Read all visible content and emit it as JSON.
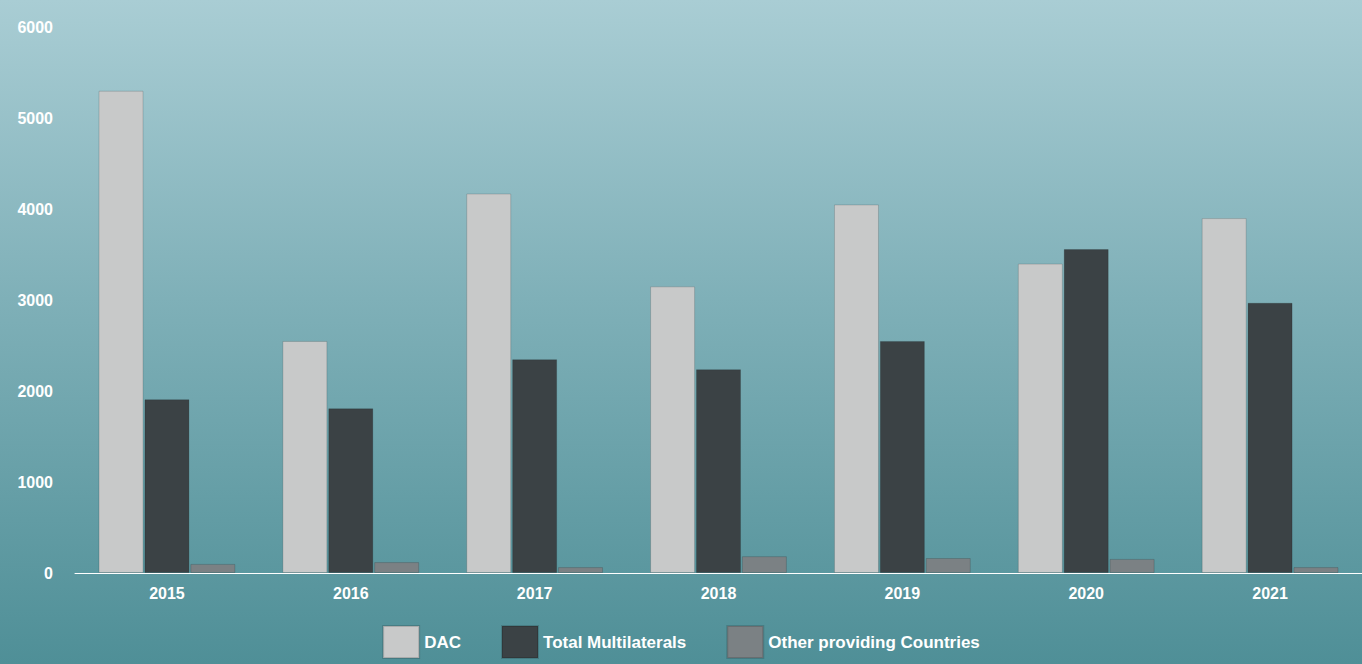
{
  "chart_data": {
    "type": "bar",
    "categories": [
      "2015",
      "2016",
      "2017",
      "2018",
      "2019",
      "2020",
      "2021"
    ],
    "series": [
      {
        "name": "DAC",
        "color": "#c8c9c9",
        "values": [
          5300,
          2550,
          4170,
          3150,
          4050,
          3400,
          3900
        ]
      },
      {
        "name": "Total Multilaterals",
        "color": "#3b4245",
        "values": [
          1910,
          1810,
          2350,
          2240,
          2550,
          3560,
          2970
        ]
      },
      {
        "name": "Other providing Countries",
        "color": "#7b8184",
        "values": [
          100,
          120,
          65,
          185,
          165,
          155,
          65
        ]
      }
    ],
    "ylim": [
      0,
      6000
    ],
    "yticks": [
      0,
      1000,
      2000,
      3000,
      4000,
      5000,
      6000
    ],
    "grid": false,
    "legend": "bottom"
  }
}
